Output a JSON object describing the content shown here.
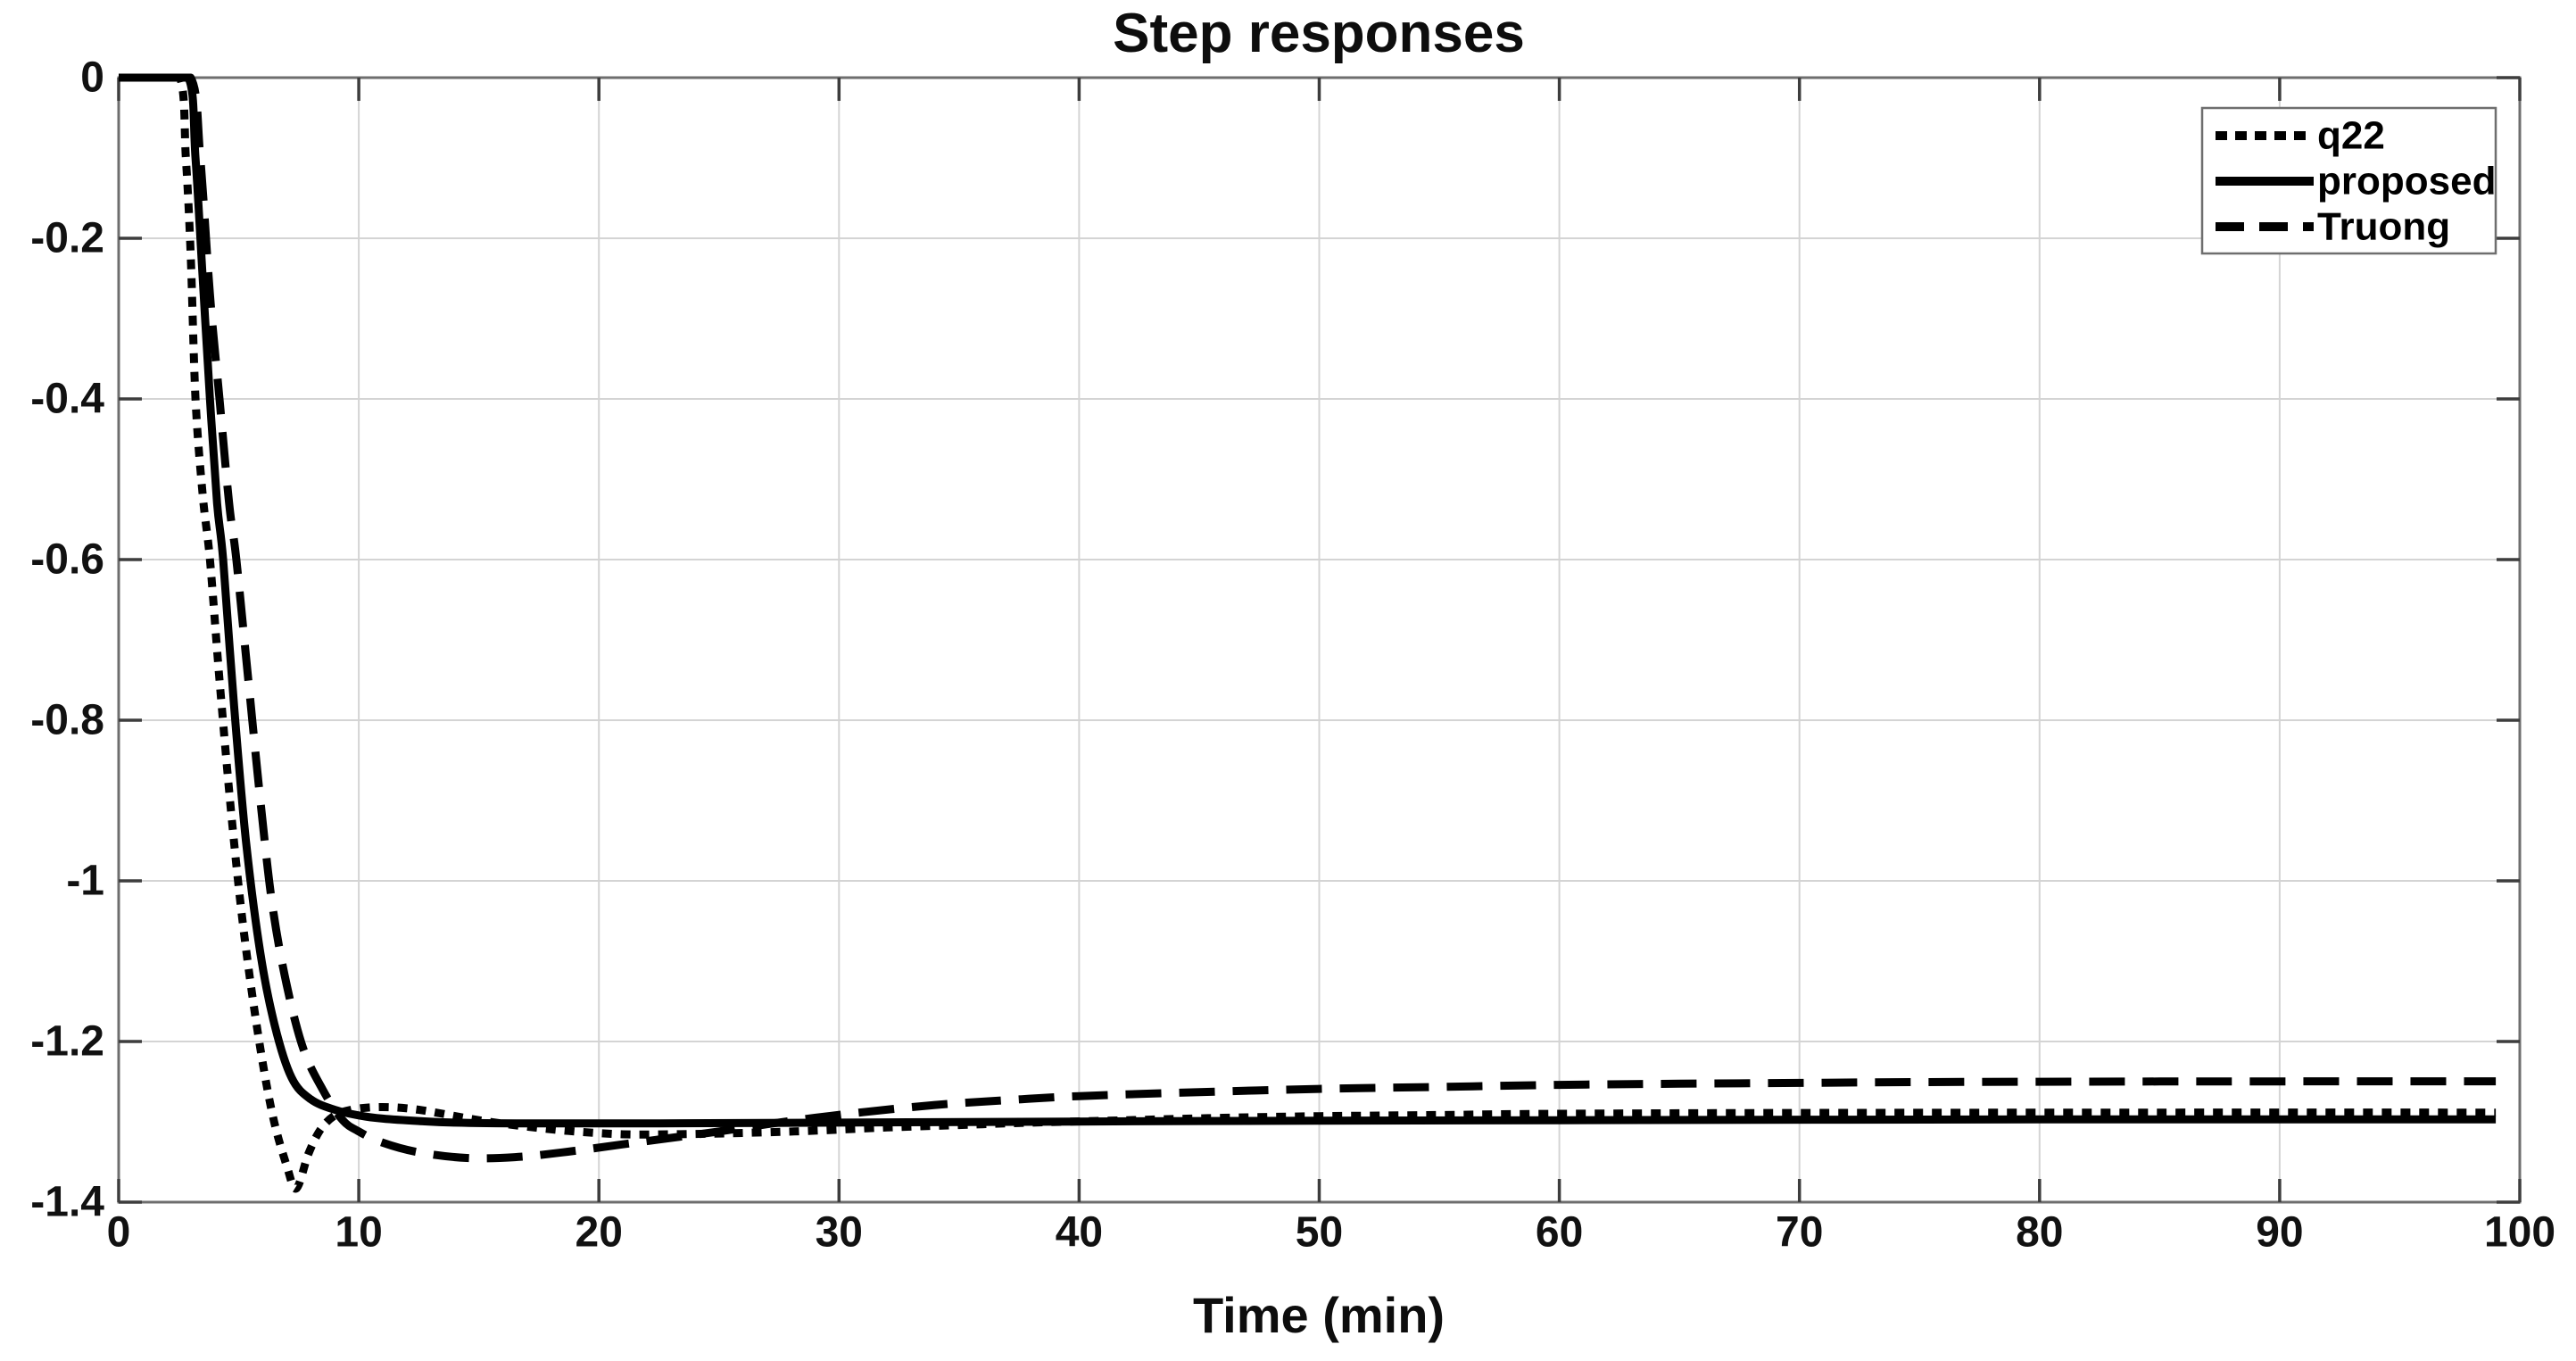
{
  "figure": {
    "title": "Step responses",
    "xlabel": "Time (min)",
    "background_color": "#ffffff",
    "curve_color": "#000000",
    "axis_box_color": "#6e6e6e",
    "tick_color": "#3d3d3d",
    "grid_color": "#d4d4d4",
    "label_color": "#111111"
  },
  "chart_data": {
    "type": "line",
    "title": "Step responses",
    "xlabel": "Time (min)",
    "ylabel": "",
    "xlim": [
      0,
      100
    ],
    "ylim": [
      -1.4,
      0
    ],
    "xticks": [
      0,
      10,
      20,
      30,
      40,
      50,
      60,
      70,
      80,
      90,
      100
    ],
    "xtick_labels": [
      "0",
      "10",
      "20",
      "30",
      "40",
      "50",
      "60",
      "70",
      "80",
      "90",
      "100"
    ],
    "yticks": [
      0,
      -0.2,
      -0.4,
      -0.6,
      -0.8,
      -1,
      -1.2,
      -1.4
    ],
    "ytick_labels": [
      "0",
      "-0.2",
      "-0.4",
      "-0.6",
      "-0.8",
      "-1",
      "-1.2",
      "-1.4"
    ],
    "grid": true,
    "legend_position": "northeast",
    "series": [
      {
        "name": "q22",
        "style": "dotted",
        "color": "#000000",
        "points": [
          [
            0,
            0
          ],
          [
            1.4,
            0
          ],
          [
            2.55,
            0
          ],
          [
            2.8,
            -0.1
          ],
          [
            3.0,
            -0.22
          ],
          [
            3.2,
            -0.4
          ],
          [
            3.5,
            -0.52
          ],
          [
            3.8,
            -0.6
          ],
          [
            4.2,
            -0.75
          ],
          [
            4.7,
            -0.92
          ],
          [
            5.2,
            -1.06
          ],
          [
            5.8,
            -1.19
          ],
          [
            6.4,
            -1.29
          ],
          [
            7.0,
            -1.355
          ],
          [
            7.4,
            -1.383
          ],
          [
            7.9,
            -1.34
          ],
          [
            8.4,
            -1.31
          ],
          [
            9.0,
            -1.292
          ],
          [
            9.7,
            -1.285
          ],
          [
            10.5,
            -1.282
          ],
          [
            11.5,
            -1.282
          ],
          [
            12.5,
            -1.285
          ],
          [
            13.5,
            -1.29
          ],
          [
            15,
            -1.298
          ],
          [
            17,
            -1.306
          ],
          [
            19,
            -1.312
          ],
          [
            21,
            -1.3155
          ],
          [
            23,
            -1.3155
          ],
          [
            25,
            -1.3145
          ],
          [
            27,
            -1.313
          ],
          [
            29,
            -1.311
          ],
          [
            32,
            -1.307
          ],
          [
            35,
            -1.304
          ],
          [
            38,
            -1.301
          ],
          [
            42,
            -1.298
          ],
          [
            46,
            -1.295
          ],
          [
            50,
            -1.293
          ],
          [
            55,
            -1.2915
          ],
          [
            60,
            -1.29
          ],
          [
            70,
            -1.289
          ],
          [
            85,
            -1.2885
          ],
          [
            99,
            -1.2885
          ]
        ]
      },
      {
        "name": "proposed",
        "style": "solid",
        "color": "#000000",
        "points": [
          [
            0,
            0
          ],
          [
            1.5,
            0
          ],
          [
            2.9,
            0
          ],
          [
            3.2,
            -0.1
          ],
          [
            3.5,
            -0.25
          ],
          [
            3.8,
            -0.4
          ],
          [
            4.1,
            -0.53
          ],
          [
            4.35,
            -0.6
          ],
          [
            4.8,
            -0.78
          ],
          [
            5.3,
            -0.95
          ],
          [
            5.9,
            -1.09
          ],
          [
            6.5,
            -1.18
          ],
          [
            7.2,
            -1.245
          ],
          [
            8,
            -1.272
          ],
          [
            9,
            -1.285
          ],
          [
            10,
            -1.292
          ],
          [
            11,
            -1.296
          ],
          [
            12.5,
            -1.299
          ],
          [
            14,
            -1.301
          ],
          [
            17,
            -1.302
          ],
          [
            22,
            -1.302
          ],
          [
            30,
            -1.301
          ],
          [
            45,
            -1.299
          ],
          [
            60,
            -1.298
          ],
          [
            80,
            -1.297
          ],
          [
            99,
            -1.297
          ]
        ]
      },
      {
        "name": "Truong",
        "style": "dashed",
        "color": "#000000",
        "points": [
          [
            0,
            0
          ],
          [
            1.5,
            0
          ],
          [
            3.0,
            0
          ],
          [
            3.4,
            -0.1
          ],
          [
            3.8,
            -0.27
          ],
          [
            4.2,
            -0.4
          ],
          [
            4.6,
            -0.53
          ],
          [
            4.9,
            -0.6
          ],
          [
            5.4,
            -0.75
          ],
          [
            5.9,
            -0.9
          ],
          [
            6.4,
            -1.03
          ],
          [
            7.0,
            -1.13
          ],
          [
            7.7,
            -1.21
          ],
          [
            8.5,
            -1.26
          ],
          [
            9.3,
            -1.297
          ],
          [
            10,
            -1.312
          ],
          [
            11,
            -1.326
          ],
          [
            12.5,
            -1.338
          ],
          [
            14.5,
            -1.345
          ],
          [
            16.5,
            -1.344
          ],
          [
            18.5,
            -1.338
          ],
          [
            21,
            -1.328
          ],
          [
            23,
            -1.32
          ],
          [
            25,
            -1.312
          ],
          [
            27,
            -1.303
          ],
          [
            29,
            -1.295
          ],
          [
            31,
            -1.288
          ],
          [
            34,
            -1.279
          ],
          [
            37,
            -1.273
          ],
          [
            40,
            -1.268
          ],
          [
            45,
            -1.263
          ],
          [
            50,
            -1.259
          ],
          [
            55,
            -1.2565
          ],
          [
            60,
            -1.254
          ],
          [
            65,
            -1.2525
          ],
          [
            70,
            -1.2515
          ],
          [
            75,
            -1.2505
          ],
          [
            85,
            -1.2498
          ],
          [
            99,
            -1.2495
          ]
        ]
      }
    ]
  }
}
